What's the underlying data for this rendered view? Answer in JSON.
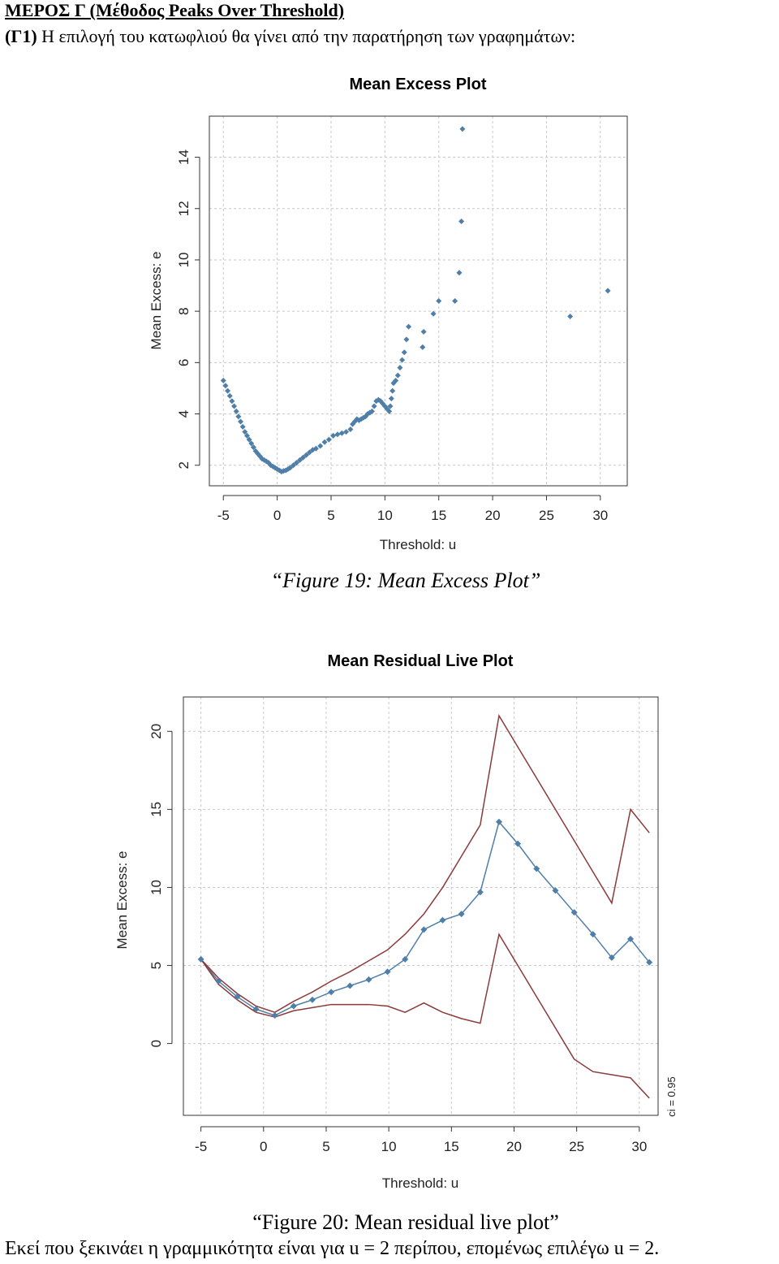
{
  "document": {
    "heading": "ΜΕΡΟΣ Γ (Μέθοδος Peaks Over Threshold)",
    "intro_label": "(Γ1)",
    "intro_text": " Η επιλογή του κατωφλιού θα γίνει από την παρατήρηση των γραφημάτων:",
    "caption_fig19": "“Figure 19: Mean Excess Plot”",
    "caption_fig20": "“Figure 20: Mean residual live plot”",
    "conclusion": "Εκεί που ξεκινάει η γραμμικότητα είναι για u = 2 περίπου, επομένως επιλέγω u = 2."
  },
  "colors": {
    "points": "#4f7fa8",
    "ci_line": "#8b3a3a",
    "grid": "#c8c8c8"
  },
  "chart_data": [
    {
      "type": "scatter",
      "title": "Mean Excess Plot",
      "xlabel": "Threshold: u",
      "ylabel": "Mean Excess: e",
      "xlim": [
        -6.3,
        32.5
      ],
      "ylim": [
        1.2,
        15.6
      ],
      "xticks": [
        -5,
        0,
        5,
        10,
        15,
        20,
        25,
        30
      ],
      "yticks": [
        2,
        4,
        6,
        8,
        10,
        12,
        14
      ],
      "grid": true,
      "series": [
        {
          "x": [
            -5.0,
            -4.8,
            -4.6,
            -4.4,
            -4.2,
            -4.0,
            -3.8,
            -3.6,
            -3.4,
            -3.2,
            -3.0,
            -2.8,
            -2.6,
            -2.4,
            -2.2,
            -2.0,
            -1.8,
            -1.6,
            -1.4,
            -1.2,
            -1.0,
            -0.8,
            -0.6,
            -0.4,
            -0.2,
            0.0,
            0.2,
            0.4,
            0.6,
            0.8,
            1.0,
            1.2,
            1.5,
            1.8,
            2.1,
            2.4,
            2.7,
            3.0,
            3.3,
            3.6,
            4.0,
            4.4,
            4.8,
            5.2,
            5.6,
            6.0,
            6.4,
            6.8,
            7.0,
            7.2,
            7.4,
            7.6,
            7.8,
            8.0,
            8.2,
            8.4,
            8.6,
            8.8,
            9.0,
            9.2,
            9.4,
            9.6,
            9.8,
            10.0,
            10.2,
            10.4,
            10.5,
            10.6,
            10.7,
            10.8,
            11.0,
            11.2,
            11.4,
            11.6,
            11.8,
            12.0,
            12.2,
            13.5,
            13.6,
            14.5,
            15.0,
            16.5,
            16.9,
            17.1,
            17.2,
            27.2,
            30.7
          ],
          "y": [
            5.3,
            5.1,
            4.9,
            4.7,
            4.5,
            4.3,
            4.1,
            3.9,
            3.7,
            3.5,
            3.3,
            3.15,
            3.0,
            2.85,
            2.7,
            2.55,
            2.45,
            2.35,
            2.25,
            2.2,
            2.15,
            2.1,
            2.0,
            1.95,
            1.9,
            1.85,
            1.8,
            1.75,
            1.78,
            1.8,
            1.85,
            1.9,
            2.0,
            2.1,
            2.2,
            2.3,
            2.4,
            2.5,
            2.6,
            2.65,
            2.75,
            2.9,
            3.0,
            3.15,
            3.2,
            3.25,
            3.3,
            3.4,
            3.6,
            3.7,
            3.8,
            3.75,
            3.8,
            3.85,
            3.9,
            4.0,
            4.05,
            4.1,
            4.3,
            4.5,
            4.55,
            4.5,
            4.4,
            4.3,
            4.2,
            4.1,
            4.3,
            4.6,
            4.9,
            5.2,
            5.3,
            5.5,
            5.8,
            6.1,
            6.4,
            6.9,
            7.4,
            6.6,
            7.2,
            7.9,
            8.4,
            8.4,
            9.5,
            11.5,
            15.1,
            7.8,
            8.8
          ]
        }
      ]
    },
    {
      "type": "line",
      "title": "Mean Residual Live Plot",
      "xlabel": "Threshold: u",
      "ylabel": "Mean Excess: e",
      "annotation": "ci = 0.95",
      "xlim": [
        -6.4,
        31.5
      ],
      "ylim": [
        -4.6,
        22.2
      ],
      "xticks": [
        -5,
        0,
        5,
        10,
        15,
        20,
        25,
        30
      ],
      "yticks": [
        0,
        5,
        10,
        15,
        20
      ],
      "grid": true,
      "x": [
        -5.0,
        -3.6,
        -2.1,
        -0.6,
        0.9,
        2.4,
        3.9,
        5.4,
        6.9,
        8.4,
        9.9,
        11.3,
        12.8,
        14.3,
        15.8,
        17.3,
        18.8,
        20.3,
        21.8,
        23.3,
        24.8,
        26.3,
        27.8,
        29.3,
        30.8
      ],
      "series": [
        {
          "y": [
            5.4,
            4.0,
            3.0,
            2.2,
            1.8,
            2.4,
            2.8,
            3.3,
            3.7,
            4.1,
            4.6,
            5.4,
            7.3,
            7.9,
            8.3,
            9.7,
            14.2,
            12.8,
            11.2,
            9.8,
            8.4,
            7.0,
            5.5,
            6.7,
            5.2
          ]
        },
        {
          "y": [
            5.4,
            4.2,
            3.2,
            2.4,
            2.0,
            2.7,
            3.3,
            4.0,
            4.6,
            5.3,
            6.0,
            7.0,
            8.3,
            10.0,
            12.0,
            14.0,
            21.0,
            19.0,
            17.0,
            15.0,
            13.0,
            11.0,
            9.0,
            15.0,
            13.5
          ]
        },
        {
          "y": [
            5.4,
            3.8,
            2.8,
            2.0,
            1.7,
            2.1,
            2.3,
            2.5,
            2.5,
            2.5,
            2.4,
            2.0,
            2.6,
            2.0,
            1.6,
            1.3,
            7.0,
            5.0,
            3.0,
            1.0,
            -1.0,
            -1.8,
            -2.0,
            -2.2,
            -3.5
          ]
        }
      ]
    }
  ]
}
